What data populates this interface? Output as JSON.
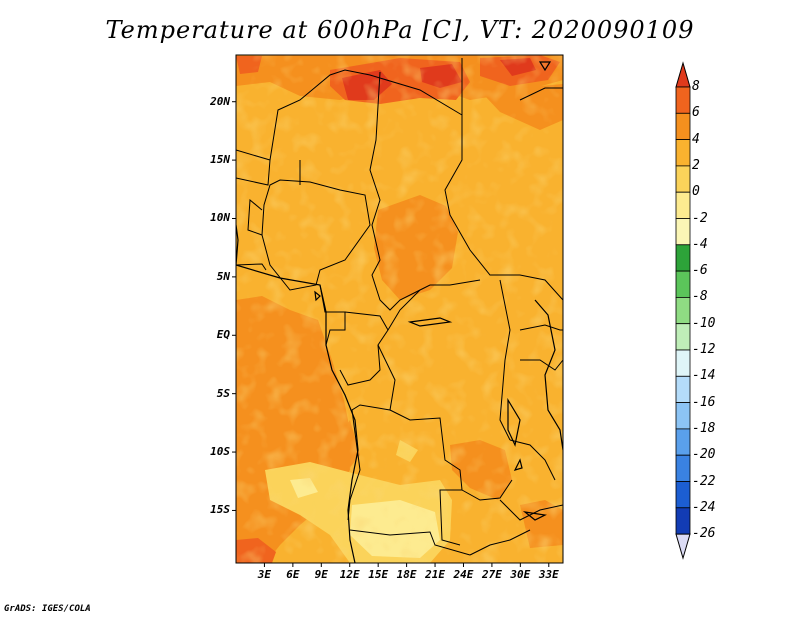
{
  "title": "Temperature at 600hPa [C], VT: 2020090109",
  "footer": "GrADS: IGES/COLA",
  "map": {
    "lon_range": [
      0,
      34.5
    ],
    "lat_range": [
      -19.5,
      24
    ],
    "lat_ticks": [
      {
        "value": 20,
        "label": "20N"
      },
      {
        "value": 15,
        "label": "15N"
      },
      {
        "value": 10,
        "label": "10N"
      },
      {
        "value": 5,
        "label": "5N"
      },
      {
        "value": 0,
        "label": "EQ"
      },
      {
        "value": -5,
        "label": "5S"
      },
      {
        "value": -10,
        "label": "10S"
      },
      {
        "value": -15,
        "label": "15S"
      }
    ],
    "lon_ticks": [
      {
        "value": 3,
        "label": "3E"
      },
      {
        "value": 6,
        "label": "6E"
      },
      {
        "value": 9,
        "label": "9E"
      },
      {
        "value": 12,
        "label": "12E"
      },
      {
        "value": 15,
        "label": "15E"
      },
      {
        "value": 18,
        "label": "18E"
      },
      {
        "value": 21,
        "label": "21E"
      },
      {
        "value": 24,
        "label": "24E"
      },
      {
        "value": 27,
        "label": "27E"
      },
      {
        "value": 30,
        "label": "30E"
      },
      {
        "value": 33,
        "label": "33E"
      }
    ]
  },
  "colorbar": {
    "levels": [
      "8",
      "6",
      "4",
      "2",
      "0",
      "-2",
      "-4",
      "-6",
      "-8",
      "-10",
      "-12",
      "-14",
      "-16",
      "-18",
      "-20",
      "-22",
      "-24",
      "-26"
    ],
    "colors": [
      "#e03a1c",
      "#f0641e",
      "#f5901e",
      "#f9b22f",
      "#fbd35a",
      "#fdeb90",
      "#fbf6b6",
      "#2da339",
      "#5bc55a",
      "#8fdc83",
      "#bfeeb8",
      "#dff5f8",
      "#b4dcfa",
      "#8cc4f5",
      "#5aa0ec",
      "#3a82e2",
      "#1c5ed2",
      "#123cb4",
      "#0a1e78"
    ],
    "top_cap": "#e03a1c",
    "bottom_cap": "#dcdcf5"
  }
}
